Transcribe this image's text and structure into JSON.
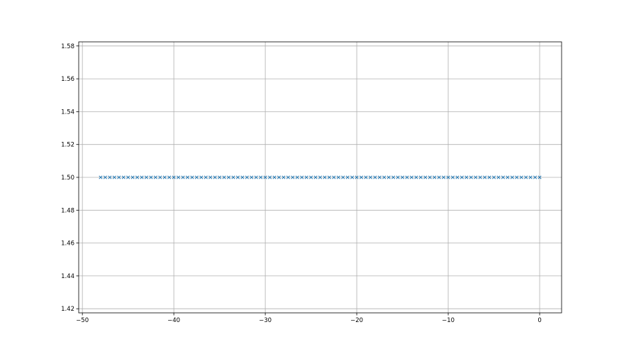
{
  "chart_data": {
    "type": "scatter",
    "title": "",
    "xlabel": "",
    "ylabel": "",
    "xlim": [
      -50.4,
      2.4
    ],
    "ylim": [
      1.4175,
      1.5825
    ],
    "grid": true,
    "xticks": [
      -50,
      -40,
      -30,
      -20,
      -10,
      0
    ],
    "xtick_labels": [
      "−50",
      "−40",
      "−30",
      "−20",
      "−10",
      "0"
    ],
    "yticks": [
      1.42,
      1.44,
      1.46,
      1.48,
      1.5,
      1.52,
      1.54,
      1.56,
      1.58
    ],
    "ytick_labels": [
      "1.42",
      "1.44",
      "1.46",
      "1.48",
      "1.50",
      "1.52",
      "1.54",
      "1.56",
      "1.58"
    ],
    "marker": "x",
    "color": "#1f77b4",
    "series": [
      {
        "x": [
          -48,
          -47.5,
          -47,
          -46.5,
          -46,
          -45.5,
          -45,
          -44.5,
          -44,
          -43.5,
          -43,
          -42.5,
          -42,
          -41.5,
          -41,
          -40.5,
          -40,
          -39.5,
          -39,
          -38.5,
          -38,
          -37.5,
          -37,
          -36.5,
          -36,
          -35.5,
          -35,
          -34.5,
          -34,
          -33.5,
          -33,
          -32.5,
          -32,
          -31.5,
          -31,
          -30.5,
          -30,
          -29.5,
          -29,
          -28.5,
          -28,
          -27.5,
          -27,
          -26.5,
          -26,
          -25.5,
          -25,
          -24.5,
          -24,
          -23.5,
          -23,
          -22.5,
          -22,
          -21.5,
          -21,
          -20.5,
          -20,
          -19.5,
          -19,
          -18.5,
          -18,
          -17.5,
          -17,
          -16.5,
          -16,
          -15.5,
          -15,
          -14.5,
          -14,
          -13.5,
          -13,
          -12.5,
          -12,
          -11.5,
          -11,
          -10.5,
          -10,
          -9.5,
          -9,
          -8.5,
          -8,
          -7.5,
          -7,
          -6.5,
          -6,
          -5.5,
          -5,
          -4.5,
          -4,
          -3.5,
          -3,
          -2.5,
          -2,
          -1.5,
          -1,
          -0.5,
          0
        ],
        "y_constant": 1.5
      }
    ]
  }
}
